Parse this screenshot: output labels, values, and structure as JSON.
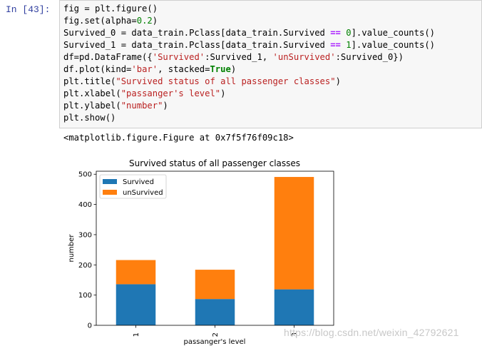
{
  "cell": {
    "prompt": "In  [43]:",
    "code_lines": [
      [
        {
          "t": "fig = plt.figure()",
          "c": ""
        }
      ],
      [
        {
          "t": "fig.set(alpha=",
          "c": ""
        },
        {
          "t": "0.2",
          "c": "num"
        },
        {
          "t": ")",
          "c": ""
        }
      ],
      [
        {
          "t": "Survived_0 = data_train.Pclass[data_train.Survived ",
          "c": ""
        },
        {
          "t": "==",
          "c": "op"
        },
        {
          "t": " ",
          "c": ""
        },
        {
          "t": "0",
          "c": "num"
        },
        {
          "t": "].value_counts()",
          "c": ""
        }
      ],
      [
        {
          "t": "Survived_1 = data_train.Pclass[data_train.Survived ",
          "c": ""
        },
        {
          "t": "==",
          "c": "op"
        },
        {
          "t": " ",
          "c": ""
        },
        {
          "t": "1",
          "c": "num"
        },
        {
          "t": "].value_counts()",
          "c": ""
        }
      ],
      [
        {
          "t": "df=pd.DataFrame({",
          "c": ""
        },
        {
          "t": "'Survived'",
          "c": "str"
        },
        {
          "t": ":Survived_1, ",
          "c": ""
        },
        {
          "t": "'unSurvived'",
          "c": "str"
        },
        {
          "t": ":Survived_0})",
          "c": ""
        }
      ],
      [
        {
          "t": "df.plot(kind=",
          "c": ""
        },
        {
          "t": "'bar'",
          "c": "str"
        },
        {
          "t": ", stacked=",
          "c": ""
        },
        {
          "t": "True",
          "c": "kw"
        },
        {
          "t": ")",
          "c": ""
        }
      ],
      [
        {
          "t": "plt.title(",
          "c": ""
        },
        {
          "t": "\"Survived status of all passenger classes\"",
          "c": "str"
        },
        {
          "t": ")",
          "c": ""
        }
      ],
      [
        {
          "t": "plt.xlabel(",
          "c": ""
        },
        {
          "t": "\"passanger's level\"",
          "c": "str"
        },
        {
          "t": ")",
          "c": ""
        }
      ],
      [
        {
          "t": "plt.ylabel(",
          "c": ""
        },
        {
          "t": "\"number\"",
          "c": "str"
        },
        {
          "t": ")",
          "c": ""
        }
      ],
      [
        {
          "t": "plt.show()",
          "c": ""
        }
      ]
    ]
  },
  "output": {
    "text": "<matplotlib.figure.Figure at 0x7f5f76f09c18>"
  },
  "watermark": "https://blog.csdn.net/weixin_42792621",
  "chart_data": {
    "type": "bar",
    "stacked": true,
    "title": "Survived status of all passenger classes",
    "xlabel": "passanger's level",
    "ylabel": "number",
    "categories": [
      "1",
      "2",
      "3"
    ],
    "series": [
      {
        "name": "Survived",
        "values": [
          136,
          87,
          119
        ],
        "color": "#1f77b4"
      },
      {
        "name": "unSurvived",
        "values": [
          80,
          97,
          372
        ],
        "color": "#ff7f0e"
      }
    ],
    "ylim": [
      0,
      510
    ],
    "yticks": [
      0,
      100,
      200,
      300,
      400,
      500
    ],
    "legend": "top-left",
    "grid": false
  }
}
